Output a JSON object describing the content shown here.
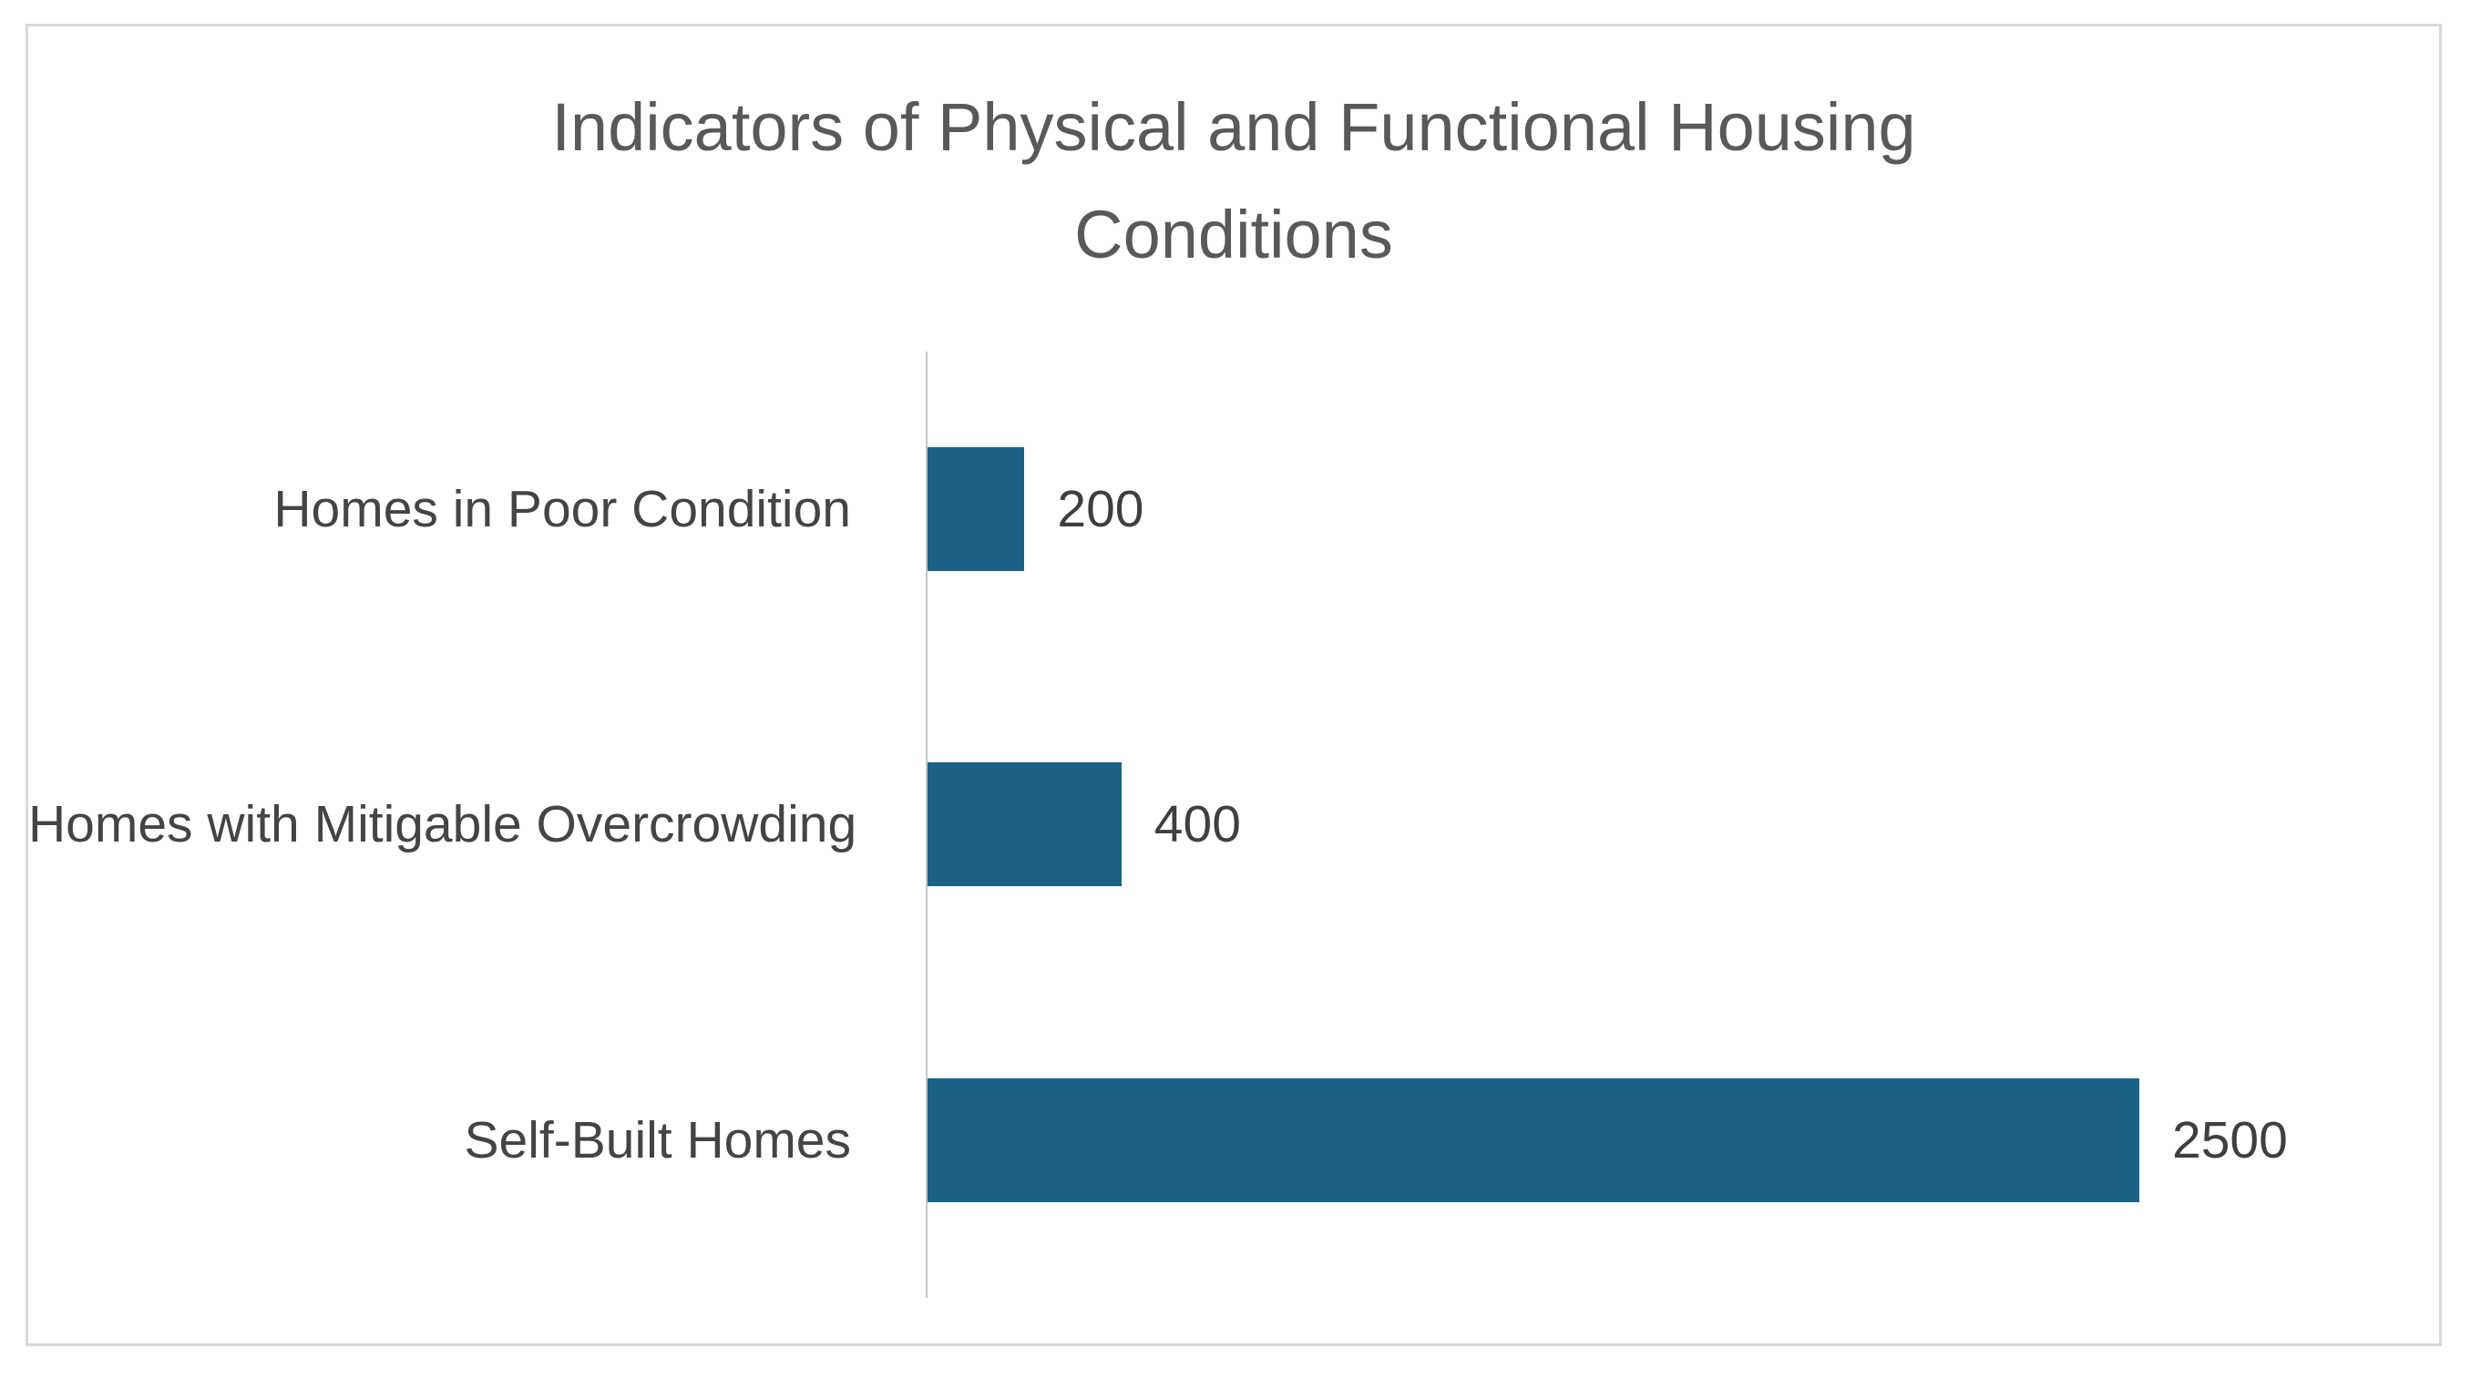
{
  "chart_data": {
    "type": "bar",
    "orientation": "horizontal",
    "title": "Indicators of Physical and Functional Housing Conditions",
    "categories": [
      "Homes in Poor Condition",
      "Homes with Mitigable Overcrowding",
      "Self-Built Homes"
    ],
    "values": [
      200,
      400,
      2500
    ],
    "data_labels": [
      "200",
      "400",
      "2500"
    ],
    "xlim": [
      0,
      2500
    ],
    "grid": false,
    "legend": "none",
    "bar_color": "#1c6284",
    "title_color": "#595959",
    "category_label_color": "#444444",
    "value_label_color": "#3f3f3f",
    "axis_line_color": "#c6c6c6",
    "frame_border_color": "#d9d9d9"
  }
}
